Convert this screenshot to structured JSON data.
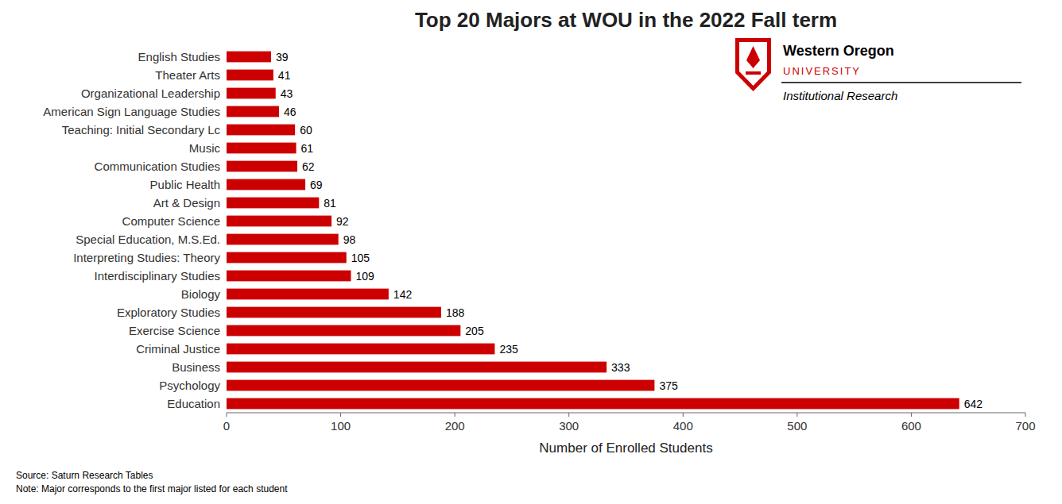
{
  "chart_data": {
    "type": "bar",
    "orientation": "horizontal",
    "title": "Top 20 Majors at WOU in the 2022 Fall term",
    "xlabel": "Number of Enrolled Students",
    "annotations": [
      "Source: Saturn Research Tables",
      "Note: Major corresponds to the first major listed for each student",
      "Western Oregon",
      "UNIVERSITY",
      "Institutional Research"
    ],
    "categories": [
      "Education",
      "Psychology",
      "Business",
      "Criminal Justice",
      "Exercise Science",
      "Exploratory Studies",
      "Biology",
      "Interdisciplinary Studies",
      "Interpreting Studies: Theory",
      "Special Education, M.S.Ed.",
      "Computer Science",
      "Art & Design",
      "Public Health",
      "Communication Studies",
      "Music",
      "Teaching: Initial Secondary Lc",
      "American Sign Language Studies",
      "Organizational Leadership",
      "Theater Arts",
      "English Studies"
    ],
    "values": [
      642,
      375,
      333,
      235,
      205,
      188,
      142,
      109,
      105,
      98,
      92,
      81,
      69,
      62,
      61,
      60,
      46,
      43,
      41,
      39
    ],
    "color": "#cc0000",
    "xlim": [
      0,
      700
    ],
    "xticks": [
      0,
      100,
      200,
      300,
      400,
      500,
      600,
      700
    ],
    "data_labels": true,
    "grid": false
  }
}
